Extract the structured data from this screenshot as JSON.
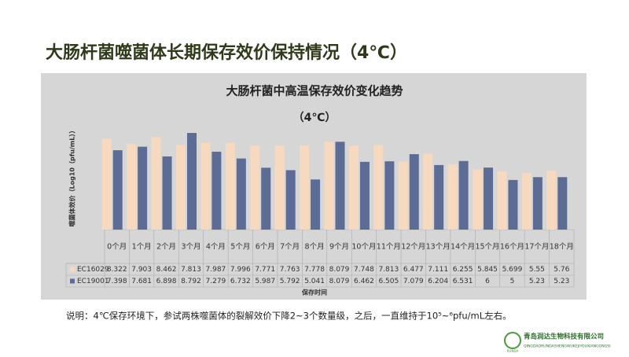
{
  "page_title": "大肠杆菌噬菌体长期保存效价保持情况（4℃）",
  "chart_data": {
    "type": "bar",
    "title": "大肠杆菌中高温保存效价变化趋势",
    "subtitle": "（4℃）",
    "y_label": "噬菌体效价（Log10（pfu/mL））",
    "x_label": "保存时间",
    "categories": [
      "0个月",
      "1个月",
      "2个月",
      "3个月",
      "4个月",
      "5个月",
      "6个月",
      "7个月",
      "8个月",
      "9个月",
      "10个月",
      "11个月",
      "12个月",
      "13个月",
      "14个月",
      "15个月",
      "16个月",
      "17个月",
      "18个月"
    ],
    "series": [
      {
        "name": "EC16029",
        "color": "#f7d9bf",
        "values": [
          8.322,
          7.903,
          8.462,
          7.813,
          7.987,
          7.996,
          7.771,
          7.763,
          7.778,
          8.079,
          7.748,
          7.813,
          6.477,
          7.111,
          6.255,
          5.845,
          5.699,
          5.55,
          5.76
        ]
      },
      {
        "name": "EC19001",
        "color": "#5d6c94",
        "values": [
          7.398,
          7.681,
          6.898,
          8.792,
          7.279,
          6.732,
          5.987,
          5.792,
          5.041,
          8.079,
          6.462,
          6.505,
          7.079,
          6.204,
          6.531,
          6,
          5,
          5.23,
          5.23
        ]
      }
    ],
    "ylim": [
      1,
      10
    ]
  },
  "note": "说明：4℃保存环境下，参试两株噬菌体的裂解效价下降2~3个数量级，之后，一直维持于10⁵~⁶pfu/mL左右。",
  "logo": {
    "mark": "RUNDA",
    "name": "青岛润达生物科技有限公司",
    "pinyin": "QINGDAORUNDASHENGWUKEJIYOUXIANGONGSI"
  }
}
